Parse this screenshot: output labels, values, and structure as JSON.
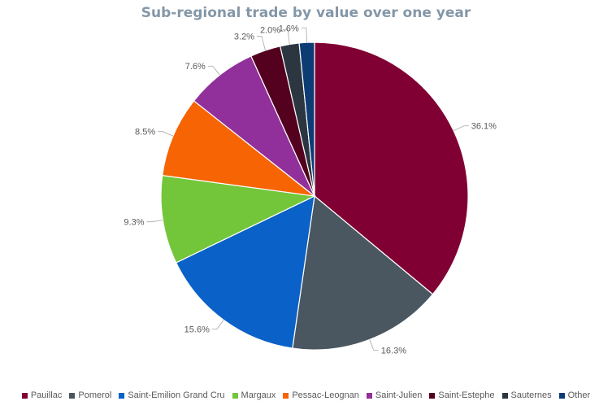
{
  "chart_data": {
    "type": "pie",
    "title": "Sub-regional trade by value over one year",
    "categories": [
      "Pauillac",
      "Pomerol",
      "Saint-Emilion Grand Cru",
      "Margaux",
      "Pessac-Leognan",
      "Saint-Julien",
      "Saint-Estephe",
      "Sauternes",
      "Other"
    ],
    "values": [
      36.1,
      16.3,
      15.6,
      9.3,
      8.5,
      7.6,
      3.2,
      2.0,
      1.6
    ],
    "labels": [
      "36.1%",
      "16.3%",
      "15.6%",
      "9.3%",
      "8.5%",
      "7.6%",
      "3.2%",
      "2.0%",
      "1.6%"
    ],
    "colors": [
      "#800033",
      "#4a5761",
      "#0a61c7",
      "#73c63a",
      "#f76403",
      "#912f9b",
      "#54001f",
      "#2c3640",
      "#0d3c75"
    ],
    "legend_position": "bottom"
  }
}
